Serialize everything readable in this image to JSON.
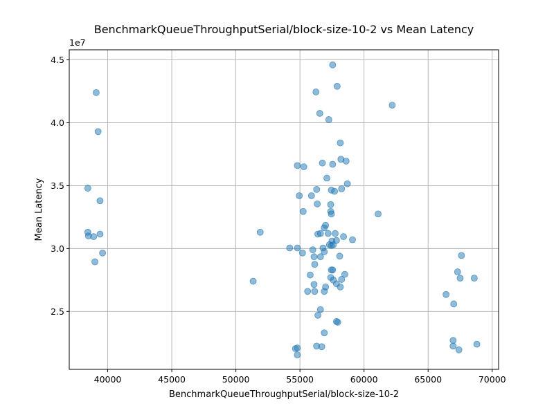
{
  "chart_data": {
    "type": "scatter",
    "title": "BenchmarkQueueThroughputSerial/block-size-10-2 vs Mean Latency",
    "xlabel": "BenchmarkQueueThroughputSerial/block-size-10-2",
    "ylabel": "Mean Latency",
    "y_offset_text": "1e7",
    "xlim": [
      37000,
      70500
    ],
    "ylim": [
      20400000,
      45800000
    ],
    "x_ticks": [
      40000,
      45000,
      50000,
      55000,
      60000,
      65000,
      70000
    ],
    "x_tick_labels": [
      "40000",
      "45000",
      "50000",
      "55000",
      "60000",
      "65000",
      "70000"
    ],
    "y_ticks": [
      25000000,
      30000000,
      35000000,
      40000000,
      45000000
    ],
    "y_tick_labels": [
      "2.5",
      "3.0",
      "3.5",
      "4.0",
      "4.5"
    ],
    "grid": true,
    "point_color": "#1f77b4",
    "point_opacity": 0.5,
    "points": [
      [
        39100,
        42400000
      ],
      [
        39250,
        39300000
      ],
      [
        38450,
        34800000
      ],
      [
        39400,
        33800000
      ],
      [
        38450,
        31300000
      ],
      [
        38500,
        31000000
      ],
      [
        38900,
        30950000
      ],
      [
        39400,
        31150000
      ],
      [
        39600,
        29650000
      ],
      [
        39000,
        28950000
      ],
      [
        51900,
        31300000
      ],
      [
        51350,
        27400000
      ],
      [
        54200,
        30050000
      ],
      [
        54800,
        30050000
      ],
      [
        55200,
        29650000
      ],
      [
        54800,
        36600000
      ],
      [
        55300,
        36500000
      ],
      [
        54950,
        34200000
      ],
      [
        55250,
        32950000
      ],
      [
        54650,
        22050000
      ],
      [
        54800,
        22100000
      ],
      [
        54800,
        21550000
      ],
      [
        55600,
        26600000
      ],
      [
        56000,
        29900000
      ],
      [
        56100,
        29350000
      ],
      [
        56150,
        28750000
      ],
      [
        55800,
        27900000
      ],
      [
        56100,
        27150000
      ],
      [
        56150,
        26600000
      ],
      [
        56600,
        25150000
      ],
      [
        56400,
        24700000
      ],
      [
        56300,
        22250000
      ],
      [
        56700,
        22200000
      ],
      [
        56900,
        23300000
      ],
      [
        56250,
        42450000
      ],
      [
        56550,
        40750000
      ],
      [
        56750,
        36800000
      ],
      [
        56300,
        34700000
      ],
      [
        55900,
        34200000
      ],
      [
        56350,
        33550000
      ],
      [
        56400,
        31150000
      ],
      [
        56600,
        31200000
      ],
      [
        56900,
        31650000
      ],
      [
        57000,
        31850000
      ],
      [
        56800,
        30050000
      ],
      [
        56900,
        29750000
      ],
      [
        56600,
        29350000
      ],
      [
        57000,
        26950000
      ],
      [
        56900,
        26600000
      ],
      [
        57250,
        40250000
      ],
      [
        57100,
        35600000
      ],
      [
        57450,
        34650000
      ],
      [
        57700,
        34550000
      ],
      [
        57400,
        33500000
      ],
      [
        57400,
        32950000
      ],
      [
        57450,
        32750000
      ],
      [
        57200,
        31200000
      ],
      [
        57500,
        30600000
      ],
      [
        57300,
        30300000
      ],
      [
        57450,
        30250000
      ],
      [
        57600,
        30300000
      ],
      [
        57550,
        28300000
      ],
      [
        57450,
        28300000
      ],
      [
        57400,
        27700000
      ],
      [
        57600,
        27500000
      ],
      [
        57850,
        27200000
      ],
      [
        57850,
        24200000
      ],
      [
        57950,
        24150000
      ],
      [
        57550,
        44600000
      ],
      [
        57900,
        42900000
      ],
      [
        57550,
        36700000
      ],
      [
        57750,
        31200000
      ],
      [
        57850,
        30650000
      ],
      [
        58100,
        29400000
      ],
      [
        58150,
        38400000
      ],
      [
        58200,
        37100000
      ],
      [
        58600,
        36950000
      ],
      [
        58700,
        35150000
      ],
      [
        58250,
        34750000
      ],
      [
        58400,
        30950000
      ],
      [
        58500,
        27950000
      ],
      [
        58250,
        27550000
      ],
      [
        58150,
        26950000
      ],
      [
        59100,
        30700000
      ],
      [
        61100,
        32750000
      ],
      [
        62200,
        41400000
      ],
      [
        66400,
        26350000
      ],
      [
        67000,
        25600000
      ],
      [
        67300,
        28150000
      ],
      [
        67500,
        27650000
      ],
      [
        67600,
        29450000
      ],
      [
        68600,
        27650000
      ],
      [
        66950,
        22700000
      ],
      [
        66950,
        22250000
      ],
      [
        67400,
        21950000
      ],
      [
        68800,
        22400000
      ]
    ]
  }
}
